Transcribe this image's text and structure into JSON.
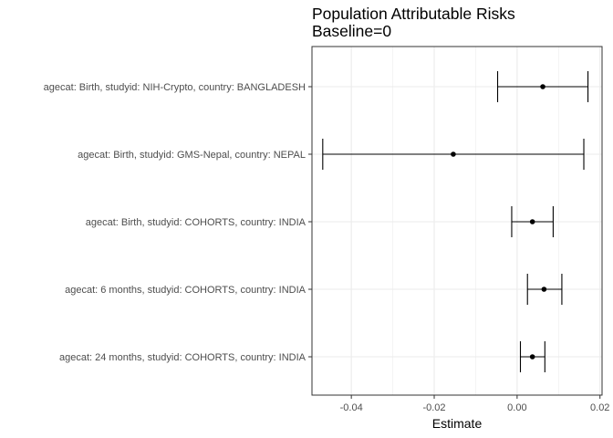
{
  "chart_data": {
    "type": "errorbar",
    "orientation": "horizontal",
    "title": "Population Attributable Risks",
    "subtitle": "Baseline=0",
    "xlabel": "Estimate",
    "ylabel": "",
    "xlim": [
      -0.0495,
      0.0205
    ],
    "xticks": [
      -0.04,
      -0.02,
      0.0,
      0.02
    ],
    "xtick_labels": [
      "-0.04",
      "-0.02",
      "0.00",
      "0.02"
    ],
    "grid": true,
    "legend": "none",
    "colors": {
      "point": "#000000",
      "errorbar": "#000000",
      "grid": "#ebebeb",
      "panel_border": "#333333"
    },
    "rows": [
      {
        "label": "agecat: Birth, studyid: NIH-Crypto, country: BANGLADESH",
        "estimate": 0.0062,
        "lower": -0.0047,
        "upper": 0.0171
      },
      {
        "label": "agecat: Birth, studyid: GMS-Nepal, country: NEPAL",
        "estimate": -0.0154,
        "lower": -0.0469,
        "upper": 0.0161
      },
      {
        "label": "agecat: Birth, studyid: COHORTS, country: INDIA",
        "estimate": 0.0037,
        "lower": -0.0013,
        "upper": 0.0087
      },
      {
        "label": "agecat: 6 months, studyid: COHORTS, country: INDIA",
        "estimate": 0.0065,
        "lower": 0.0025,
        "upper": 0.0108
      },
      {
        "label": "agecat: 24 months, studyid: COHORTS, country: INDIA",
        "estimate": 0.0037,
        "lower": 0.0008,
        "upper": 0.0067
      }
    ]
  }
}
